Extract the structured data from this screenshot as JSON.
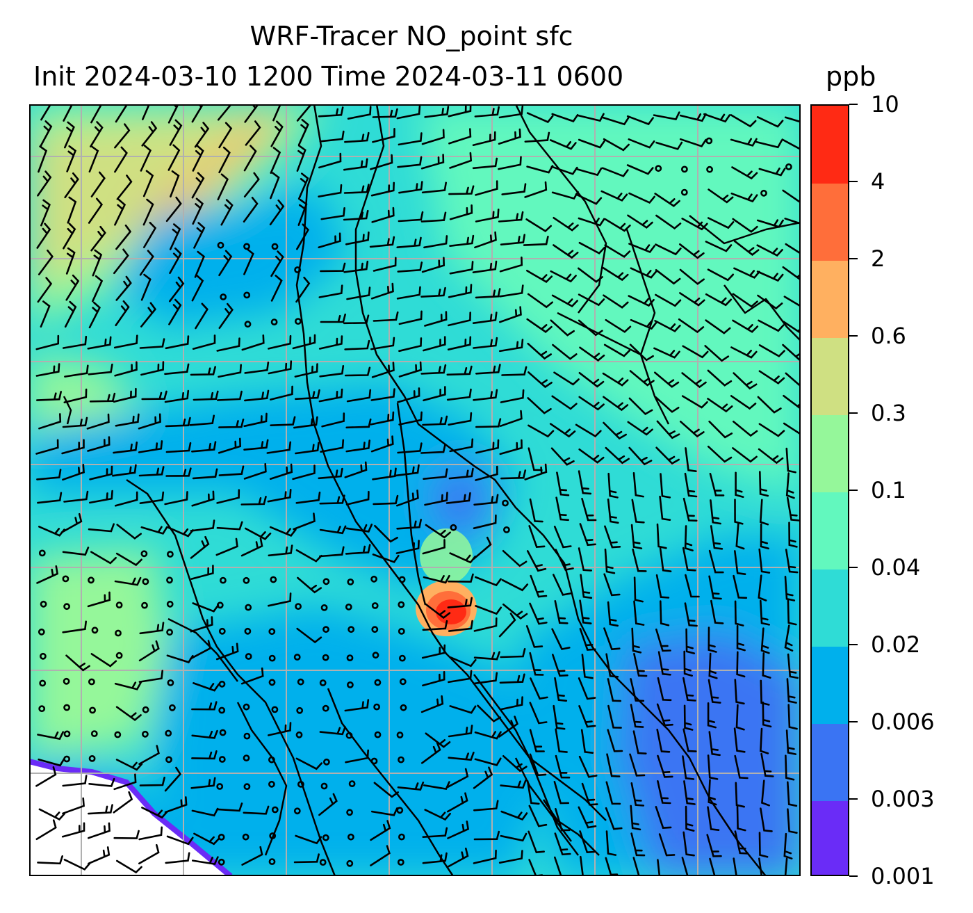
{
  "title": {
    "line1": "WRF-Tracer NO_point sfc",
    "line2": "Init 2024-03-10 1200 Time 2024-03-11 0600",
    "units": "ppb"
  },
  "colorbar": {
    "levels": [
      "0.001",
      "0.003",
      "0.006",
      "0.02",
      "0.04",
      "0.1",
      "0.3",
      "0.6",
      "2",
      "4",
      "10"
    ],
    "colors": [
      "#6a2cf7",
      "#3a74f3",
      "#00b0ec",
      "#2fdcd6",
      "#62f8be",
      "#95f79a",
      "#cfe082",
      "#ffb060",
      "#ff6e3a",
      "#ff2a14"
    ]
  },
  "map": {
    "gridlines": true,
    "missing_value_fill": "#ffffff",
    "coastline_color": "#000000",
    "wind_barbs": true,
    "calm_markers": true
  }
}
